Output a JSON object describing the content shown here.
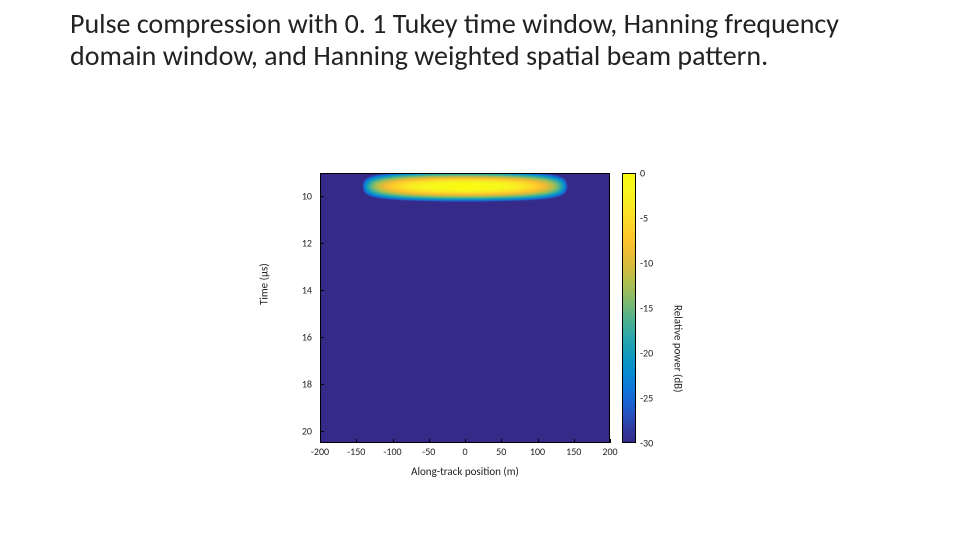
{
  "slide": {
    "title": "Pulse compression with 0. 1 Tukey time window, Hanning frequency domain window, and Hanning weighted spatial beam pattern."
  },
  "chart": {
    "type": "heatmap",
    "xlabel": "Along-track position (m)",
    "ylabel": "Time (μs)",
    "colorbar_label": "Relative power (dB)",
    "xlim": [
      -200,
      200
    ],
    "ylim_top": 9,
    "ylim_bottom": 20.5,
    "y_ticks": [
      10,
      12,
      14,
      16,
      18,
      20
    ],
    "x_ticks": [
      -200,
      -150,
      -100,
      -50,
      0,
      50,
      100,
      150,
      200
    ],
    "clim": [
      -30,
      0
    ],
    "cbar_ticks": [
      0,
      -5,
      -10,
      -15,
      -20,
      -25,
      -30
    ],
    "background_color": "#ffffff",
    "plot_bg_value_db": -30,
    "hotspot": {
      "time_center_us": 9.55,
      "time_sigma_us": 0.18,
      "x_center_m": 0,
      "x_halfwidth_m": 145,
      "peak_db": 0
    },
    "colormap_name": "parula",
    "colormap_stops": [
      [
        0.0,
        53,
        42,
        135
      ],
      [
        0.05,
        48,
        59,
        160
      ],
      [
        0.1,
        40,
        80,
        188
      ],
      [
        0.15,
        25,
        101,
        212
      ],
      [
        0.2,
        15,
        119,
        217
      ],
      [
        0.25,
        6,
        137,
        210
      ],
      [
        0.3,
        8,
        150,
        197
      ],
      [
        0.35,
        25,
        160,
        183
      ],
      [
        0.4,
        47,
        168,
        167
      ],
      [
        0.45,
        74,
        176,
        147
      ],
      [
        0.5,
        109,
        183,
        123
      ],
      [
        0.55,
        145,
        188,
        98
      ],
      [
        0.6,
        178,
        190,
        78
      ],
      [
        0.65,
        210,
        188,
        62
      ],
      [
        0.7,
        235,
        187,
        54
      ],
      [
        0.75,
        252,
        196,
        46
      ],
      [
        0.8,
        253,
        210,
        42
      ],
      [
        0.85,
        251,
        225,
        38
      ],
      [
        0.9,
        248,
        238,
        34
      ],
      [
        0.95,
        246,
        248,
        30
      ],
      [
        1.0,
        249,
        251,
        14
      ]
    ],
    "tick_fontsize_pt": 10,
    "label_fontsize_pt": 11,
    "border_color": "#000000"
  }
}
